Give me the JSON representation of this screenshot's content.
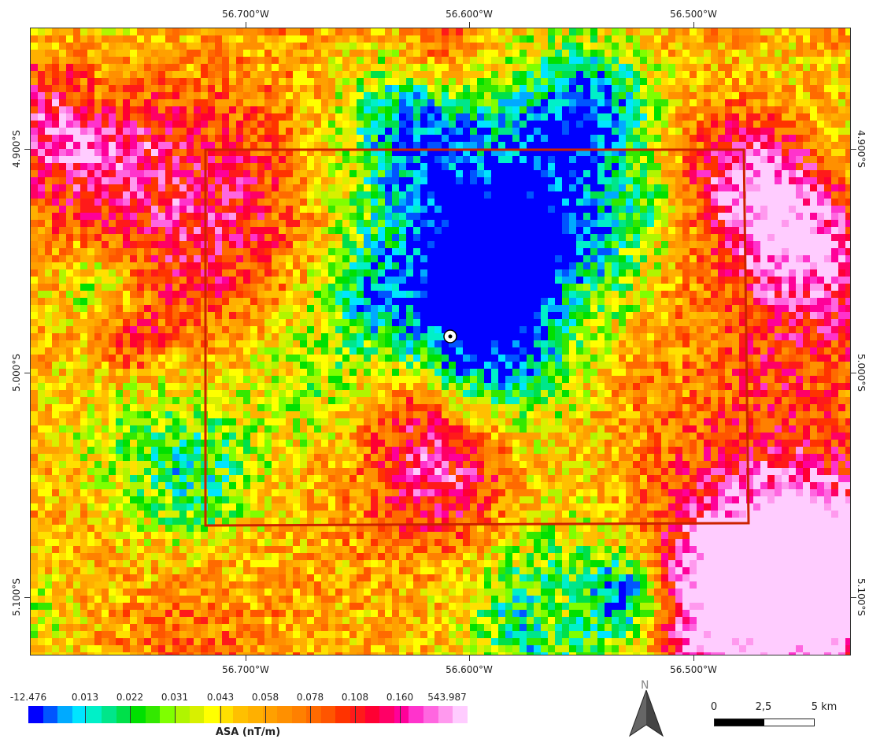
{
  "axes": {
    "lon_labels": [
      "56.700°W",
      "56.600°W",
      "56.500°W"
    ],
    "lat_labels": [
      "4.900°S",
      "5.000°S",
      "5.100°S"
    ]
  },
  "legend": {
    "title": "ASA (nT/m)",
    "values": [
      "-12.476",
      "0.013",
      "0.022",
      "0.031",
      "0.043",
      "0.058",
      "0.078",
      "0.108",
      "0.160",
      "543.987"
    ],
    "colors": [
      "#0000ff",
      "#0055ff",
      "#00aaff",
      "#00e5ff",
      "#00f0c8",
      "#00e68a",
      "#00e04a",
      "#00e000",
      "#33e800",
      "#7fff00",
      "#b0f500",
      "#d8f000",
      "#ffff00",
      "#ffe000",
      "#ffc000",
      "#ffb000",
      "#ffa000",
      "#ff9000",
      "#ff8000",
      "#ff6a00",
      "#ff5500",
      "#ff3300",
      "#ff1a1a",
      "#ff0033",
      "#ff0066",
      "#ff0099",
      "#ff33cc",
      "#ff66e0",
      "#ff99ee",
      "#ffccff"
    ]
  },
  "north": {
    "label": "N"
  },
  "scale": {
    "labels": [
      "0",
      "2,5",
      "5 km"
    ]
  },
  "map": {
    "point_marker": "station-point-icon",
    "study_area_color": "#cc2200"
  }
}
